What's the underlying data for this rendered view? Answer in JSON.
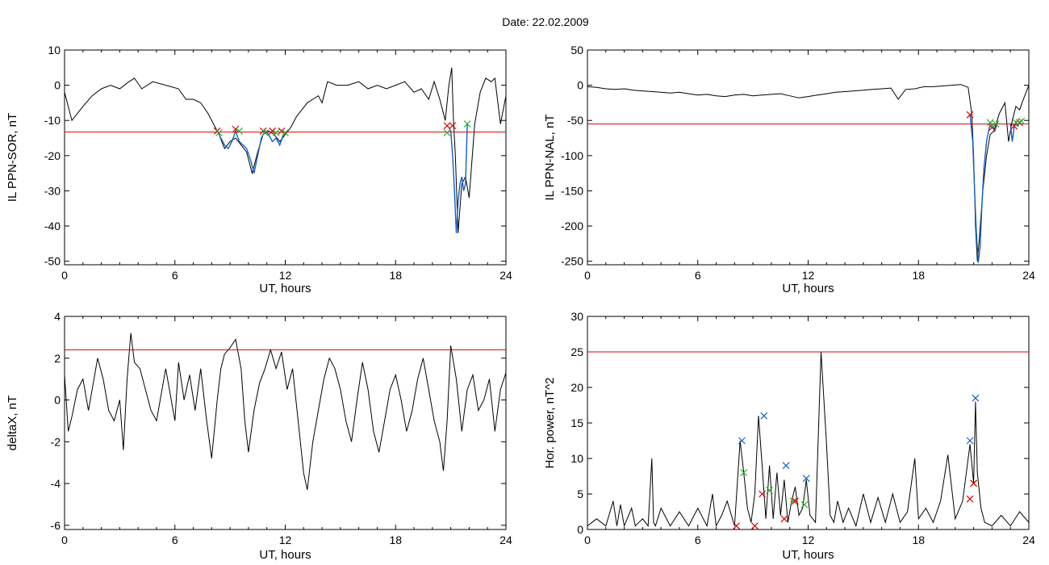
{
  "page": {
    "title": "Date:  22.02.2009"
  },
  "colors": {
    "threshold": "#e00000",
    "trace": "#000000",
    "interval": "#1060c8",
    "marker_red": "#e00000",
    "marker_green": "#30b030",
    "marker_blue": "#1060c8"
  },
  "chart_data": [
    {
      "id": "il-ppn-sor",
      "type": "line",
      "xlabel": "UT, hours",
      "ylabel": "IL PPN-SOR, nT",
      "xlim": [
        0,
        24
      ],
      "ylim": [
        -51,
        10
      ],
      "xticks": [
        0,
        6,
        12,
        18,
        24
      ],
      "yticks": [
        10,
        0,
        -10,
        -20,
        -30,
        -40,
        -50
      ],
      "grid": false,
      "threshold": -13.3,
      "series": [
        {
          "style": "trace",
          "x": [
            0,
            0.4,
            1.0,
            1.5,
            2.0,
            2.5,
            3.0,
            3.5,
            3.8,
            4.2,
            4.8,
            5.5,
            6.2,
            6.6,
            7.0,
            7.4,
            7.8,
            8.1,
            8.4,
            8.7,
            9.0,
            9.3,
            9.6,
            9.9,
            10.2,
            10.5,
            10.8,
            11.1,
            11.4,
            11.7,
            12.0,
            12.3,
            12.6,
            12.9,
            13.2,
            13.5,
            13.8,
            14.0,
            14.3,
            14.8,
            15.4,
            16.0,
            16.5,
            17.0,
            17.5,
            18.0,
            18.5,
            19.0,
            19.4,
            19.8,
            20.1,
            20.4,
            20.7,
            20.9,
            21.05,
            21.15,
            21.25,
            21.4,
            21.6,
            21.8,
            22.0,
            22.3,
            22.6,
            22.9,
            23.2,
            23.4,
            23.7,
            24.0
          ],
          "y": [
            -2,
            -10,
            -6,
            -3,
            -1,
            0,
            -1,
            1,
            2,
            -1,
            1,
            0,
            -1,
            -4,
            -4,
            -5,
            -8,
            -11,
            -14,
            -18,
            -16,
            -15,
            -17,
            -19,
            -25,
            -19,
            -14,
            -13,
            -14,
            -16,
            -14,
            -12,
            -9,
            -7,
            -5,
            -4,
            -3,
            -5,
            1,
            0,
            0,
            1,
            -1,
            0,
            -1,
            0,
            1,
            -2,
            -1,
            -4,
            1,
            -4,
            -10,
            0,
            5,
            -10,
            -20,
            -42,
            -28,
            -26,
            -32,
            -11,
            -2,
            2,
            1,
            2,
            -11,
            -3
          ]
        },
        {
          "style": "interval",
          "x": [
            8.3,
            8.5,
            8.7,
            8.9,
            9.1,
            9.3,
            9.5,
            9.7,
            9.9,
            10.1,
            10.3,
            10.5,
            10.7,
            10.9,
            11.1,
            11.3,
            11.5,
            11.7,
            11.9
          ],
          "y": [
            -13,
            -15,
            -17,
            -18,
            -16,
            -13,
            -16,
            -17,
            -18,
            -21,
            -25,
            -20,
            -15,
            -13,
            -14,
            -16,
            -15,
            -17,
            -14
          ]
        },
        {
          "style": "interval",
          "x": [
            20.9,
            21.0,
            21.1,
            21.2,
            21.3,
            21.4,
            21.5,
            21.6,
            21.7,
            21.8,
            21.9
          ],
          "y": [
            -12,
            -13,
            -20,
            -30,
            -42,
            -33,
            -28,
            -26,
            -30,
            -28,
            -11
          ]
        }
      ],
      "markers": [
        {
          "color": "marker_red",
          "x": [
            8.3,
            9.3,
            10.8,
            11.3,
            11.8,
            20.8,
            21.1
          ],
          "y": [
            -13,
            -12.5,
            -13,
            -13,
            -13,
            -11.5,
            -11.5
          ]
        },
        {
          "color": "marker_green",
          "x": [
            8.4,
            9.5,
            10.9,
            11.5,
            12.0,
            20.8,
            21.9
          ],
          "y": [
            -13.5,
            -13,
            -13.5,
            -13.5,
            -13.5,
            -13.5,
            -11
          ]
        }
      ]
    },
    {
      "id": "il-ppn-nal",
      "type": "line",
      "xlabel": "UT, hours",
      "ylabel": "IL PPN-NAL, nT",
      "xlim": [
        0,
        24
      ],
      "ylim": [
        -255,
        50
      ],
      "xticks": [
        0,
        6,
        12,
        18,
        24
      ],
      "yticks": [
        50,
        0,
        -50,
        -100,
        -150,
        -200,
        -250
      ],
      "grid": false,
      "threshold": -55,
      "series": [
        {
          "style": "trace",
          "x": [
            0,
            0.5,
            1.0,
            1.5,
            2.0,
            2.5,
            3.0,
            3.5,
            4.0,
            4.5,
            5.0,
            5.5,
            6.0,
            6.5,
            7.0,
            7.5,
            8.0,
            8.5,
            9.0,
            9.5,
            10.0,
            10.5,
            11.0,
            11.5,
            12.0,
            12.5,
            13.0,
            13.5,
            14.0,
            14.5,
            15.0,
            15.5,
            16.0,
            16.5,
            16.9,
            17.3,
            17.8,
            18.3,
            18.8,
            19.3,
            19.8,
            20.3,
            20.7,
            20.9,
            21.0,
            21.1,
            21.2,
            21.3,
            21.5,
            21.7,
            21.9,
            22.1,
            22.4,
            22.7,
            22.9,
            23.1,
            23.3,
            23.5,
            23.7,
            24.0
          ],
          "y": [
            -2,
            -3,
            -5,
            -6,
            -5,
            -7,
            -8,
            -9,
            -10,
            -11,
            -10,
            -12,
            -14,
            -13,
            -15,
            -16,
            -14,
            -13,
            -15,
            -14,
            -13,
            -12,
            -15,
            -18,
            -16,
            -14,
            -12,
            -10,
            -9,
            -8,
            -7,
            -6,
            -5,
            -4,
            -20,
            -6,
            -5,
            -2,
            -2,
            -1,
            0,
            1,
            -3,
            -40,
            -100,
            -200,
            -250,
            -220,
            -150,
            -100,
            -70,
            -65,
            -40,
            -25,
            -80,
            -50,
            -30,
            -35,
            -20,
            0
          ]
        },
        {
          "style": "interval",
          "x": [
            20.8,
            20.95,
            21.05,
            21.15,
            21.25,
            21.35,
            21.45,
            21.55,
            21.7,
            21.85,
            22.0,
            22.15,
            22.3
          ],
          "y": [
            -42,
            -80,
            -150,
            -210,
            -252,
            -230,
            -170,
            -120,
            -80,
            -60,
            -55,
            -65,
            -52
          ]
        },
        {
          "style": "interval",
          "x": [
            23.0,
            23.1,
            23.2,
            23.3,
            23.4,
            23.5
          ],
          "y": [
            -55,
            -80,
            -60,
            -52,
            -58,
            -52
          ]
        }
      ],
      "markers": [
        {
          "color": "marker_red",
          "x": [
            20.8,
            22.0,
            23.2,
            23.5
          ],
          "y": [
            -42,
            -60,
            -58,
            -53
          ]
        },
        {
          "color": "marker_green",
          "x": [
            21.9,
            22.2,
            23.3,
            23.6
          ],
          "y": [
            -53,
            -55,
            -53,
            -51
          ]
        }
      ]
    },
    {
      "id": "deltax",
      "type": "line",
      "xlabel": "UT, hours",
      "ylabel": "deltaX, nT",
      "xlim": [
        0,
        24
      ],
      "ylim": [
        -6.2,
        4
      ],
      "xticks": [
        0,
        6,
        12,
        18,
        24
      ],
      "yticks": [
        4,
        2,
        0,
        -2,
        -4,
        -6
      ],
      "grid": false,
      "threshold": 2.4,
      "series": [
        {
          "style": "trace",
          "x": [
            0,
            0.2,
            0.4,
            0.7,
            1.0,
            1.3,
            1.5,
            1.8,
            2.1,
            2.4,
            2.7,
            3.0,
            3.2,
            3.4,
            3.6,
            3.8,
            4.1,
            4.4,
            4.7,
            5.0,
            5.3,
            5.5,
            5.8,
            6.0,
            6.2,
            6.5,
            6.8,
            7.1,
            7.4,
            7.7,
            8.0,
            8.3,
            8.5,
            8.7,
            9.0,
            9.3,
            9.6,
            9.8,
            10.0,
            10.3,
            10.6,
            10.9,
            11.2,
            11.5,
            11.8,
            12.1,
            12.4,
            12.7,
            13.0,
            13.2,
            13.5,
            13.8,
            14.1,
            14.4,
            14.7,
            15.0,
            15.3,
            15.6,
            15.9,
            16.2,
            16.5,
            16.8,
            17.1,
            17.4,
            17.7,
            18.0,
            18.3,
            18.6,
            18.9,
            19.2,
            19.5,
            19.8,
            20.1,
            20.4,
            20.6,
            20.8,
            21.0,
            21.3,
            21.6,
            21.9,
            22.2,
            22.5,
            22.8,
            23.1,
            23.4,
            23.7,
            24.0
          ],
          "y": [
            1.2,
            -1.5,
            -0.8,
            0.5,
            1.0,
            -0.5,
            0.5,
            2.0,
            1.0,
            -0.5,
            -1.0,
            0.0,
            -2.4,
            1.0,
            3.2,
            1.8,
            1.5,
            0.5,
            -0.5,
            -1.0,
            0.5,
            1.5,
            0.0,
            -1.0,
            1.8,
            0.0,
            1.2,
            -0.5,
            1.5,
            -0.8,
            -2.8,
            0.0,
            1.5,
            2.2,
            2.5,
            2.9,
            1.5,
            -1.0,
            -2.5,
            -0.5,
            0.8,
            1.5,
            2.4,
            1.5,
            2.3,
            0.5,
            1.5,
            -1.0,
            -3.5,
            -4.3,
            -2.0,
            -0.5,
            1.0,
            2.0,
            1.5,
            0.5,
            -1.0,
            -2.0,
            0.0,
            1.8,
            0.5,
            -1.5,
            -2.5,
            -1.0,
            0.5,
            1.2,
            0.0,
            -1.5,
            -0.5,
            1.0,
            2.0,
            0.5,
            -1.0,
            -2.0,
            -3.4,
            -1.0,
            2.6,
            1.0,
            -1.5,
            0.5,
            1.2,
            -0.5,
            0.0,
            1.0,
            -1.5,
            0.5,
            1.3
          ]
        }
      ],
      "markers": []
    },
    {
      "id": "hor-power",
      "type": "line",
      "xlabel": "UT, hours",
      "ylabel": "Hor. power, nT^2",
      "xlim": [
        0,
        24
      ],
      "ylim": [
        0,
        30
      ],
      "xticks": [
        0,
        6,
        12,
        18,
        24
      ],
      "yticks": [
        30,
        25,
        20,
        15,
        10,
        5,
        0
      ],
      "grid": false,
      "threshold": 25,
      "series": [
        {
          "style": "trace",
          "x": [
            0,
            0.5,
            1.0,
            1.4,
            1.6,
            1.8,
            2.0,
            2.4,
            2.6,
            2.8,
            3.0,
            3.3,
            3.5,
            3.6,
            3.7,
            4.0,
            4.5,
            5.0,
            5.5,
            6.0,
            6.5,
            6.8,
            7.0,
            7.3,
            7.6,
            8.0,
            8.3,
            8.5,
            8.7,
            8.9,
            9.1,
            9.3,
            9.5,
            9.7,
            9.9,
            10.1,
            10.3,
            10.5,
            10.7,
            10.9,
            11.1,
            11.3,
            11.5,
            11.7,
            11.9,
            12.1,
            12.4,
            12.7,
            13.0,
            13.2,
            13.4,
            13.6,
            13.9,
            14.2,
            14.6,
            15.0,
            15.4,
            15.8,
            16.2,
            16.6,
            17.0,
            17.4,
            17.8,
            18.0,
            18.4,
            18.8,
            19.2,
            19.6,
            20.0,
            20.4,
            20.8,
            21.0,
            21.1,
            21.2,
            21.4,
            21.6,
            22.0,
            22.5,
            23.0,
            23.5,
            24.0
          ],
          "y": [
            0.5,
            1.5,
            0.5,
            4.0,
            0.5,
            3.5,
            0.5,
            3.0,
            0.5,
            1.0,
            1.5,
            0.5,
            10.0,
            1.0,
            0.5,
            3.0,
            0.5,
            2.5,
            0.5,
            3.0,
            0.5,
            5.0,
            0.5,
            2.0,
            4.0,
            0.5,
            12.5,
            8.0,
            3.0,
            1.0,
            5.0,
            16.0,
            9.0,
            1.5,
            9.0,
            1.5,
            8.0,
            2.0,
            7.0,
            1.0,
            4.0,
            6.0,
            2.0,
            3.0,
            7.0,
            2.0,
            1.0,
            25.0,
            12.0,
            2.0,
            1.0,
            4.0,
            1.0,
            3.0,
            0.5,
            5.0,
            1.0,
            4.5,
            1.0,
            5.0,
            1.0,
            2.5,
            10.0,
            1.5,
            3.0,
            1.0,
            4.0,
            10.5,
            1.5,
            4.0,
            12.0,
            6.5,
            18.0,
            8.0,
            3.0,
            1.0,
            0.5,
            2.0,
            0.5,
            2.5,
            1.0
          ]
        }
      ],
      "markers": [
        {
          "color": "marker_blue",
          "x": [
            8.4,
            9.6,
            10.8,
            11.9,
            20.8,
            21.1
          ],
          "y": [
            12.5,
            16,
            9,
            7.2,
            12.5,
            18.5
          ]
        },
        {
          "color": "marker_green",
          "x": [
            8.5,
            9.9,
            11.2,
            11.8,
            21.0
          ],
          "y": [
            8,
            5.5,
            4,
            3.5,
            6.5
          ]
        },
        {
          "color": "marker_red",
          "x": [
            8.1,
            9.1,
            9.5,
            10.7,
            11.3,
            20.8,
            21.0
          ],
          "y": [
            0.5,
            0.5,
            5,
            1.5,
            4,
            4.3,
            6.5
          ]
        }
      ]
    }
  ]
}
